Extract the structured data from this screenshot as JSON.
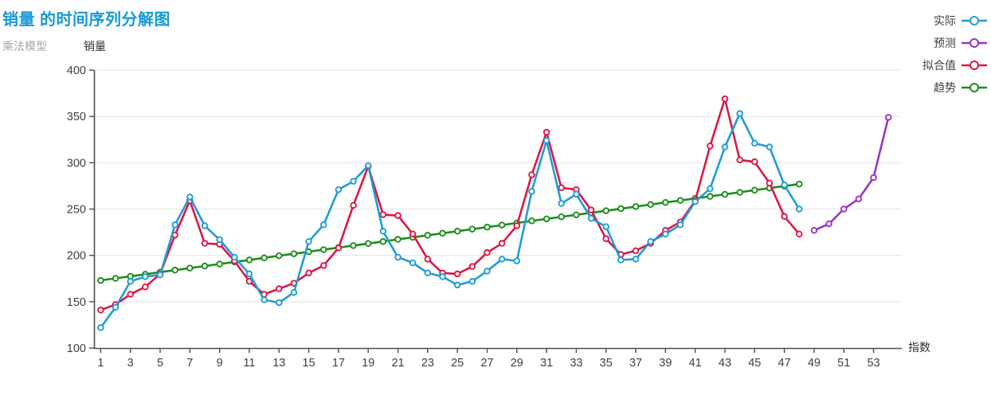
{
  "header": {
    "title": "销量 的时间序列分解图",
    "subtitle": "乘法模型"
  },
  "axes": {
    "y_title": "销量",
    "x_title": "指数"
  },
  "colors": {
    "title": "#1899d6",
    "subtitle": "#a7a7a7",
    "axis_line": "#4d4d4d",
    "tick_text": "#3f3f3f",
    "gridline": "#e4e4e4",
    "actual": "#219bd7",
    "forecast": "#9933cc",
    "fitted": "#dc1745",
    "trend": "#1e8c1e"
  },
  "chart_data": {
    "type": "line",
    "title": "销量 的时间序列分解图",
    "subtitle": "乘法模型",
    "xlabel": "指数",
    "ylabel": "销量",
    "xlim": [
      0.55,
      54.9
    ],
    "ylim": [
      100,
      400
    ],
    "yticks": [
      100,
      150,
      200,
      250,
      300,
      350,
      400
    ],
    "xticks": [
      1,
      3,
      5,
      7,
      9,
      11,
      13,
      15,
      17,
      19,
      21,
      23,
      25,
      27,
      29,
      31,
      33,
      35,
      37,
      39,
      41,
      43,
      45,
      47,
      49,
      51,
      53
    ],
    "grid": "horizontal",
    "legend_position": "top-right",
    "marker": "open-circle",
    "series": [
      {
        "name": "实际",
        "key": "actual",
        "color": "#219bd7",
        "x": [
          1,
          2,
          3,
          4,
          5,
          6,
          7,
          8,
          9,
          10,
          11,
          12,
          13,
          14,
          15,
          16,
          17,
          18,
          19,
          20,
          21,
          22,
          23,
          24,
          25,
          26,
          27,
          28,
          29,
          30,
          31,
          32,
          33,
          34,
          35,
          36,
          37,
          38,
          39,
          40,
          41,
          42,
          43,
          44,
          45,
          46,
          47,
          48
        ],
        "values": [
          122,
          144,
          172,
          177,
          179,
          233,
          263,
          232,
          217,
          198,
          180,
          152,
          149,
          160,
          215,
          233,
          271,
          280,
          297,
          226,
          198,
          192,
          181,
          177,
          168,
          172,
          183,
          196,
          194,
          269,
          324,
          256,
          266,
          240,
          231,
          195,
          196,
          215,
          223,
          233,
          258,
          272,
          317,
          353,
          321,
          317,
          276,
          250
        ]
      },
      {
        "name": "预测",
        "key": "forecast",
        "color": "#9933cc",
        "x": [
          49,
          50,
          51,
          52,
          53,
          54
        ],
        "values": [
          227,
          234,
          250,
          261,
          284,
          349
        ]
      },
      {
        "name": "拟合值",
        "key": "fitted",
        "color": "#dc1745",
        "x": [
          1,
          2,
          3,
          4,
          5,
          6,
          7,
          8,
          9,
          10,
          11,
          12,
          13,
          14,
          15,
          16,
          17,
          18,
          19,
          20,
          21,
          22,
          23,
          24,
          25,
          26,
          27,
          28,
          29,
          30,
          31,
          32,
          33,
          34,
          35,
          36,
          37,
          38,
          39,
          40,
          41,
          42,
          43,
          44,
          45,
          46,
          47,
          48
        ],
        "values": [
          141,
          147,
          158,
          166,
          180,
          222,
          259,
          213,
          212,
          194,
          172,
          158,
          164,
          170,
          181,
          189,
          208,
          254,
          296,
          244,
          243,
          223,
          196,
          181,
          180,
          188,
          203,
          213,
          232,
          287,
          333,
          273,
          271,
          249,
          218,
          201,
          205,
          213,
          227,
          236,
          259,
          318,
          369,
          303,
          301,
          278,
          242,
          223
        ]
      },
      {
        "name": "趋势",
        "key": "trend",
        "color": "#1e8c1e",
        "x": [
          1,
          2,
          3,
          4,
          5,
          6,
          7,
          8,
          9,
          10,
          11,
          12,
          13,
          14,
          15,
          16,
          17,
          18,
          19,
          20,
          21,
          22,
          23,
          24,
          25,
          26,
          27,
          28,
          29,
          30,
          31,
          32,
          33,
          34,
          35,
          36,
          37,
          38,
          39,
          40,
          41,
          42,
          43,
          44,
          45,
          46,
          47,
          48
        ],
        "values": [
          173.0,
          175.2,
          177.4,
          179.6,
          181.9,
          184.1,
          186.3,
          188.5,
          190.7,
          192.9,
          195.1,
          197.3,
          199.6,
          201.8,
          204.0,
          206.2,
          208.4,
          210.6,
          212.8,
          215.0,
          217.3,
          219.5,
          221.7,
          223.9,
          226.1,
          228.3,
          230.5,
          232.7,
          235.0,
          237.2,
          239.4,
          241.6,
          243.8,
          246.0,
          248.2,
          250.4,
          252.7,
          254.9,
          257.1,
          259.3,
          261.5,
          263.7,
          265.9,
          268.1,
          270.4,
          272.6,
          274.8,
          277.0
        ]
      }
    ]
  }
}
